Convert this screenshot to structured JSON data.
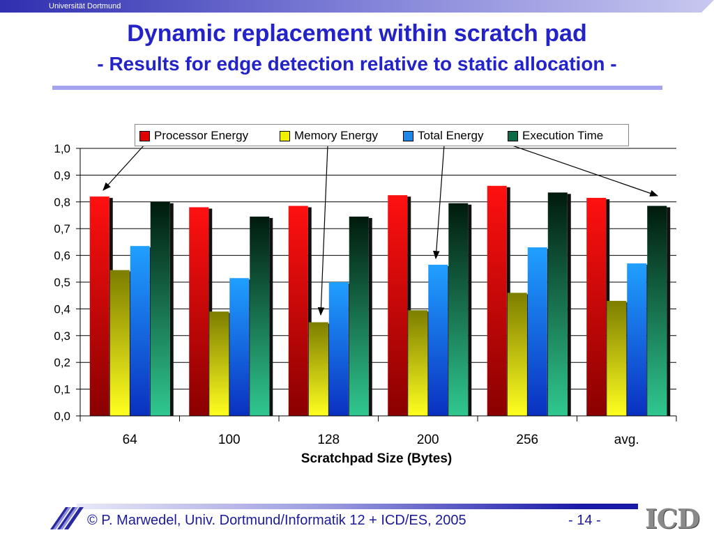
{
  "header": {
    "university": "Universität Dortmund"
  },
  "slide": {
    "title": "Dynamic replacement within scratch pad",
    "subtitle": "- Results for edge detection relative to static allocation -"
  },
  "footer": {
    "copyright": "© P. Marwedel, Univ. Dortmund/Informatik 12 + ICD/ES, 2005",
    "page": "-  14 -",
    "logo": "ICD"
  },
  "colors": {
    "title": "#2323c8",
    "processor": "#e00000",
    "memory": "#f0f000",
    "total": "#1e88e8",
    "execution": "#0d6a46"
  },
  "chart_data": {
    "type": "bar",
    "xlabel": "Scratchpad Size (Bytes)",
    "ylabel": "",
    "ylim": [
      0,
      1.0
    ],
    "yticks": [
      "0,0",
      "0,1",
      "0,2",
      "0,3",
      "0,4",
      "0,5",
      "0,6",
      "0,7",
      "0,8",
      "0,9",
      "1,0"
    ],
    "grid": true,
    "legend_position": "top",
    "categories": [
      "64",
      "100",
      "128",
      "200",
      "256",
      "avg."
    ],
    "series": [
      {
        "name": "Processor Energy",
        "values": [
          0.82,
          0.78,
          0.785,
          0.825,
          0.86,
          0.815
        ]
      },
      {
        "name": "Memory Energy",
        "values": [
          0.545,
          0.39,
          0.35,
          0.395,
          0.46,
          0.43
        ]
      },
      {
        "name": "Total Energy",
        "values": [
          0.635,
          0.515,
          0.5,
          0.565,
          0.63,
          0.57
        ]
      },
      {
        "name": "Execution Time",
        "values": [
          0.8,
          0.745,
          0.745,
          0.795,
          0.835,
          0.785
        ]
      }
    ]
  }
}
